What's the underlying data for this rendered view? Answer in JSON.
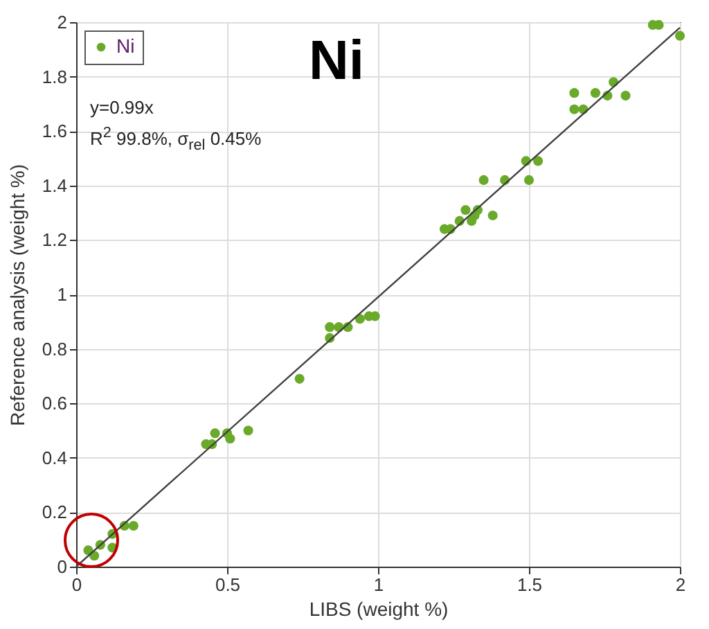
{
  "chart_data": {
    "type": "scatter",
    "title": "Ni",
    "xlabel": "LIBS (weight %)",
    "ylabel": "Reference analysis (weight %)",
    "annotations": [
      "y=0.99x",
      "R$^{2}$ 99.8%, σ$_{rel}$ 0.45%"
    ],
    "xlim": [
      0,
      2
    ],
    "ylim": [
      0,
      2
    ],
    "xticks": [
      0,
      0.5,
      1,
      1.5,
      2
    ],
    "yticks": [
      0,
      0.2,
      0.4,
      0.6,
      0.8,
      1,
      1.2,
      1.4,
      1.6,
      1.8,
      2
    ],
    "grid": true,
    "legend": "top left",
    "marker": "circle",
    "series": [
      {
        "name": "Ni",
        "color": "#6aaa2a",
        "x": [
          1.91,
          1.93,
          2.0,
          1.65,
          1.72,
          1.78,
          1.76,
          1.82,
          1.65,
          1.68,
          1.49,
          1.53,
          1.35,
          1.42,
          1.5,
          1.38,
          1.29,
          1.33,
          1.27,
          1.31,
          1.32,
          1.22,
          1.24,
          0.94,
          0.97,
          0.99,
          0.84,
          0.87,
          0.9,
          0.84,
          0.74,
          0.57,
          0.5,
          0.51,
          0.46,
          0.43,
          0.45,
          0.19,
          0.16,
          0.12,
          0.12,
          0.08,
          0.04,
          0.06
        ],
        "values": [
          1.99,
          1.99,
          1.95,
          1.74,
          1.74,
          1.78,
          1.73,
          1.73,
          1.68,
          1.68,
          1.49,
          1.49,
          1.42,
          1.42,
          1.42,
          1.29,
          1.31,
          1.31,
          1.27,
          1.27,
          1.29,
          1.24,
          1.24,
          0.91,
          0.92,
          0.92,
          0.88,
          0.88,
          0.88,
          0.84,
          0.69,
          0.5,
          0.49,
          0.47,
          0.49,
          0.45,
          0.45,
          0.15,
          0.15,
          0.12,
          0.07,
          0.08,
          0.06,
          0.04
        ]
      },
      {
        "type": "line",
        "marker": "none",
        "color": "#404040",
        "x": [
          0,
          2
        ],
        "values": [
          0,
          1.98
        ]
      }
    ]
  }
}
